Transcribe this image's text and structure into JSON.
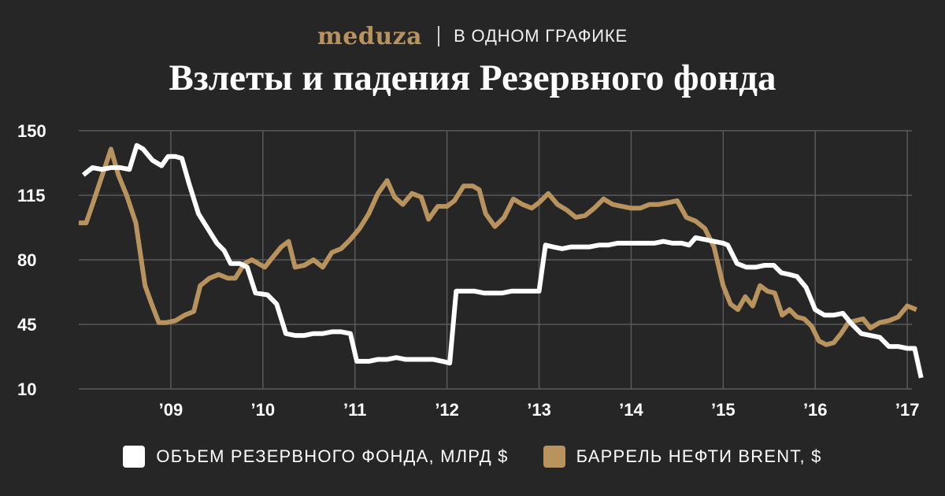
{
  "header": {
    "brand": "meduza",
    "rubric": "В ОДНОМ ГРАФИКЕ"
  },
  "chart_data": {
    "type": "line",
    "title": "Взлеты и падения Резервного фонда",
    "ylim": [
      10,
      150
    ],
    "yticks": [
      150,
      115,
      80,
      45,
      10
    ],
    "xlim": [
      2008.0,
      2017.05
    ],
    "xticks": [
      {
        "value": 2009,
        "label": "’09"
      },
      {
        "value": 2010,
        "label": "’10"
      },
      {
        "value": 2011,
        "label": "’11"
      },
      {
        "value": 2012,
        "label": "’12"
      },
      {
        "value": 2013,
        "label": "’13"
      },
      {
        "value": 2014,
        "label": "’14"
      },
      {
        "value": 2015,
        "label": "’15"
      },
      {
        "value": 2016,
        "label": "’16"
      },
      {
        "value": 2017,
        "label": "’17"
      }
    ],
    "grid": true,
    "legend_position": "bottom",
    "series": [
      {
        "name": "ОБЪЕМ РЕЗЕРВНОГО ФОНДА, МЛРД $",
        "color": "#ffffff",
        "points": [
          [
            2008.05,
            126
          ],
          [
            2008.15,
            130
          ],
          [
            2008.25,
            129
          ],
          [
            2008.35,
            130
          ],
          [
            2008.45,
            130
          ],
          [
            2008.55,
            129
          ],
          [
            2008.63,
            142
          ],
          [
            2008.7,
            140
          ],
          [
            2008.8,
            134
          ],
          [
            2008.9,
            131
          ],
          [
            2008.97,
            136
          ],
          [
            2009.05,
            136
          ],
          [
            2009.12,
            135
          ],
          [
            2009.2,
            121
          ],
          [
            2009.3,
            105
          ],
          [
            2009.4,
            97
          ],
          [
            2009.5,
            89
          ],
          [
            2009.58,
            85
          ],
          [
            2009.65,
            78
          ],
          [
            2009.75,
            78
          ],
          [
            2009.83,
            76
          ],
          [
            2009.92,
            62
          ],
          [
            2010.05,
            61
          ],
          [
            2010.15,
            56
          ],
          [
            2010.25,
            40
          ],
          [
            2010.35,
            39
          ],
          [
            2010.45,
            39
          ],
          [
            2010.55,
            40
          ],
          [
            2010.65,
            40
          ],
          [
            2010.75,
            41
          ],
          [
            2010.85,
            41
          ],
          [
            2010.95,
            40
          ],
          [
            2011.02,
            25
          ],
          [
            2011.15,
            25
          ],
          [
            2011.25,
            26
          ],
          [
            2011.35,
            26
          ],
          [
            2011.45,
            27
          ],
          [
            2011.55,
            26
          ],
          [
            2011.65,
            26
          ],
          [
            2011.75,
            26
          ],
          [
            2011.85,
            26
          ],
          [
            2011.95,
            25
          ],
          [
            2012.03,
            24
          ],
          [
            2012.1,
            63
          ],
          [
            2012.2,
            63
          ],
          [
            2012.3,
            63
          ],
          [
            2012.4,
            62
          ],
          [
            2012.5,
            62
          ],
          [
            2012.6,
            62
          ],
          [
            2012.7,
            63
          ],
          [
            2012.8,
            63
          ],
          [
            2012.9,
            63
          ],
          [
            2013.0,
            63
          ],
          [
            2013.07,
            88
          ],
          [
            2013.15,
            87
          ],
          [
            2013.25,
            86
          ],
          [
            2013.35,
            87
          ],
          [
            2013.45,
            87
          ],
          [
            2013.55,
            87
          ],
          [
            2013.65,
            88
          ],
          [
            2013.75,
            88
          ],
          [
            2013.85,
            89
          ],
          [
            2013.95,
            89
          ],
          [
            2014.05,
            89
          ],
          [
            2014.15,
            89
          ],
          [
            2014.25,
            89
          ],
          [
            2014.35,
            90
          ],
          [
            2014.45,
            89
          ],
          [
            2014.55,
            89
          ],
          [
            2014.63,
            88
          ],
          [
            2014.7,
            92
          ],
          [
            2014.8,
            91
          ],
          [
            2014.9,
            90
          ],
          [
            2015.0,
            89
          ],
          [
            2015.05,
            88
          ],
          [
            2015.15,
            78
          ],
          [
            2015.25,
            76
          ],
          [
            2015.35,
            76
          ],
          [
            2015.45,
            77
          ],
          [
            2015.55,
            77
          ],
          [
            2015.63,
            73
          ],
          [
            2015.72,
            72
          ],
          [
            2015.8,
            71
          ],
          [
            2015.9,
            65
          ],
          [
            2016.0,
            53
          ],
          [
            2016.1,
            50
          ],
          [
            2016.2,
            50
          ],
          [
            2016.3,
            51
          ],
          [
            2016.4,
            45
          ],
          [
            2016.5,
            40
          ],
          [
            2016.6,
            39
          ],
          [
            2016.7,
            38
          ],
          [
            2016.8,
            33
          ],
          [
            2016.9,
            33
          ],
          [
            2017.0,
            32
          ],
          [
            2017.08,
            32
          ],
          [
            2017.15,
            16
          ]
        ]
      },
      {
        "name": "БАРРЕЛЬ НЕФТИ BRENT, $",
        "color": "#b9935e",
        "points": [
          [
            2008.0,
            100
          ],
          [
            2008.08,
            100
          ],
          [
            2008.15,
            110
          ],
          [
            2008.25,
            125
          ],
          [
            2008.35,
            140
          ],
          [
            2008.43,
            126
          ],
          [
            2008.52,
            115
          ],
          [
            2008.62,
            100
          ],
          [
            2008.72,
            66
          ],
          [
            2008.8,
            55
          ],
          [
            2008.87,
            46
          ],
          [
            2008.95,
            46
          ],
          [
            2009.05,
            47
          ],
          [
            2009.15,
            50
          ],
          [
            2009.25,
            52
          ],
          [
            2009.32,
            66
          ],
          [
            2009.42,
            70
          ],
          [
            2009.52,
            72
          ],
          [
            2009.62,
            70
          ],
          [
            2009.7,
            70
          ],
          [
            2009.8,
            78
          ],
          [
            2009.88,
            80
          ],
          [
            2009.95,
            78
          ],
          [
            2010.02,
            76
          ],
          [
            2010.1,
            81
          ],
          [
            2010.2,
            87
          ],
          [
            2010.28,
            90
          ],
          [
            2010.35,
            76
          ],
          [
            2010.45,
            77
          ],
          [
            2010.55,
            80
          ],
          [
            2010.65,
            76
          ],
          [
            2010.75,
            84
          ],
          [
            2010.85,
            86
          ],
          [
            2010.95,
            91
          ],
          [
            2011.05,
            97
          ],
          [
            2011.15,
            105
          ],
          [
            2011.25,
            116
          ],
          [
            2011.35,
            123
          ],
          [
            2011.43,
            114
          ],
          [
            2011.52,
            110
          ],
          [
            2011.62,
            116
          ],
          [
            2011.72,
            114
          ],
          [
            2011.8,
            102
          ],
          [
            2011.9,
            109
          ],
          [
            2012.0,
            109
          ],
          [
            2012.08,
            112
          ],
          [
            2012.18,
            120
          ],
          [
            2012.28,
            120
          ],
          [
            2012.35,
            118
          ],
          [
            2012.42,
            105
          ],
          [
            2012.52,
            98
          ],
          [
            2012.62,
            103
          ],
          [
            2012.72,
            113
          ],
          [
            2012.82,
            110
          ],
          [
            2012.92,
            108
          ],
          [
            2013.0,
            111
          ],
          [
            2013.1,
            116
          ],
          [
            2013.2,
            110
          ],
          [
            2013.3,
            107
          ],
          [
            2013.4,
            103
          ],
          [
            2013.5,
            104
          ],
          [
            2013.6,
            108
          ],
          [
            2013.7,
            113
          ],
          [
            2013.8,
            110
          ],
          [
            2013.9,
            109
          ],
          [
            2014.0,
            108
          ],
          [
            2014.1,
            108
          ],
          [
            2014.2,
            110
          ],
          [
            2014.3,
            110
          ],
          [
            2014.4,
            111
          ],
          [
            2014.5,
            112
          ],
          [
            2014.6,
            103
          ],
          [
            2014.7,
            101
          ],
          [
            2014.8,
            97
          ],
          [
            2014.9,
            87
          ],
          [
            2015.0,
            66
          ],
          [
            2015.08,
            56
          ],
          [
            2015.16,
            53
          ],
          [
            2015.24,
            60
          ],
          [
            2015.32,
            55
          ],
          [
            2015.4,
            66
          ],
          [
            2015.48,
            63
          ],
          [
            2015.56,
            62
          ],
          [
            2015.64,
            50
          ],
          [
            2015.72,
            53
          ],
          [
            2015.8,
            49
          ],
          [
            2015.88,
            48
          ],
          [
            2015.96,
            44
          ],
          [
            2016.04,
            36
          ],
          [
            2016.12,
            34
          ],
          [
            2016.2,
            35
          ],
          [
            2016.28,
            40
          ],
          [
            2016.36,
            46
          ],
          [
            2016.44,
            47
          ],
          [
            2016.52,
            48
          ],
          [
            2016.6,
            43
          ],
          [
            2016.7,
            46
          ],
          [
            2016.8,
            47
          ],
          [
            2016.9,
            49
          ],
          [
            2017.0,
            55
          ],
          [
            2017.1,
            53
          ]
        ]
      }
    ]
  }
}
